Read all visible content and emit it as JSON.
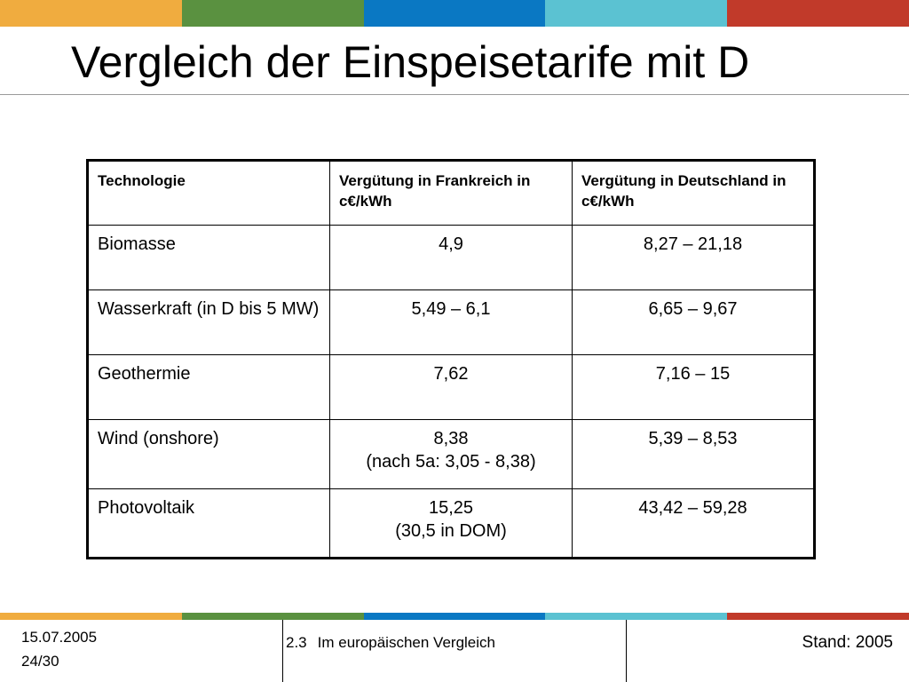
{
  "colors": {
    "bar": [
      "#f0ac3f",
      "#5a9140",
      "#0a78c3",
      "#5bc2d2",
      "#c13a2a"
    ]
  },
  "slide": {
    "title": "Vergleich der Einspeisetarife mit D"
  },
  "table": {
    "headers": [
      "Technologie",
      "Vergütung in Frankreich in c€/kWh",
      "Vergütung in Deutschland in c€/kWh"
    ],
    "rows": [
      {
        "technology": "Biomasse",
        "france": [
          "4,9"
        ],
        "germany": "8,27 – 21,18"
      },
      {
        "technology": "Wasserkraft (in D bis 5 MW)",
        "france": [
          "5,49 – 6,1"
        ],
        "germany": "6,65 – 9,67"
      },
      {
        "technology": "Geothermie",
        "france": [
          "7,62"
        ],
        "germany": "7,16 – 15"
      },
      {
        "technology": "Wind (onshore)",
        "france": [
          "8,38",
          "(nach 5a: 3,05 - 8,38)"
        ],
        "germany": "5,39 – 8,53"
      },
      {
        "technology": "Photovoltaik",
        "france": [
          "15,25",
          "(30,5 in DOM)"
        ],
        "germany": "43,42 – 59,28"
      }
    ]
  },
  "footer": {
    "date": "15.07.2005",
    "page": "24/30",
    "section_number": "2.3",
    "section_title": "Im europäischen Vergleich",
    "stand": "Stand: 2005"
  }
}
